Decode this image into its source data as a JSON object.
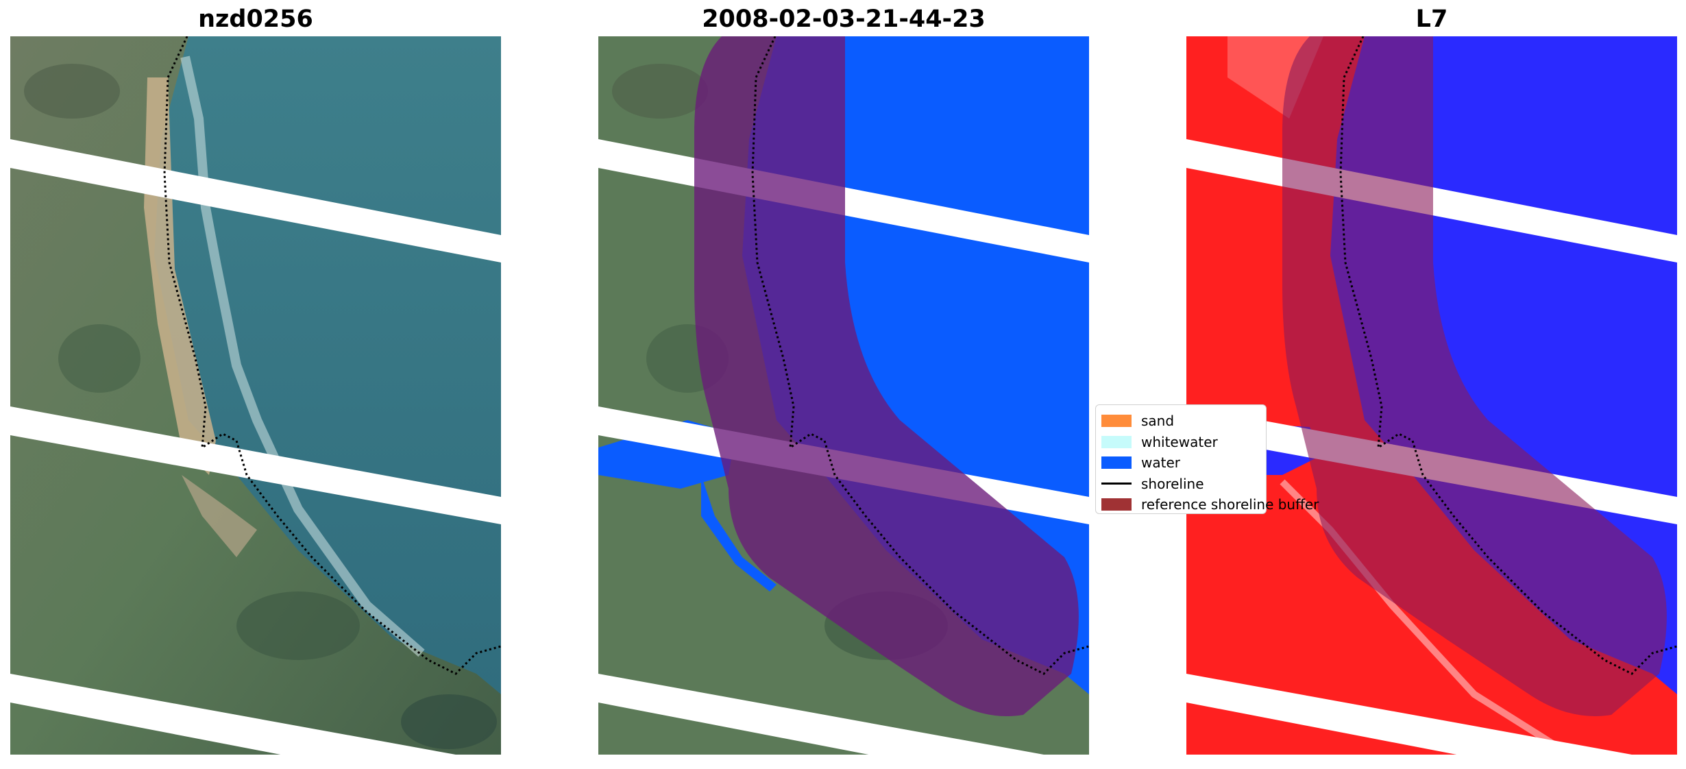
{
  "panels": [
    {
      "title": "nzd0256",
      "kind": "rgb-image"
    },
    {
      "title": "2008-02-03-21-44-23",
      "kind": "classified-image"
    },
    {
      "title": "L7",
      "kind": "index-image"
    }
  ],
  "legend": {
    "items": [
      {
        "label": "sand",
        "color": "#ff8c3a",
        "type": "patch"
      },
      {
        "label": "whitewater",
        "color": "#c6fbfb",
        "type": "patch"
      },
      {
        "label": "water",
        "color": "#0a5cff",
        "type": "patch"
      },
      {
        "label": "shoreline",
        "color": "#000000",
        "type": "line"
      },
      {
        "label": "reference shoreline buffer",
        "color": "#a03234",
        "type": "patch"
      }
    ]
  },
  "colors": {
    "sea": "#3f7f8a",
    "land": "#5d7a5b",
    "sand": "#c7b08a",
    "water_class": "#0a5cff",
    "buffer": "#8a2b6e",
    "index_red": "#ff2020",
    "index_blue": "#2a2aff"
  }
}
